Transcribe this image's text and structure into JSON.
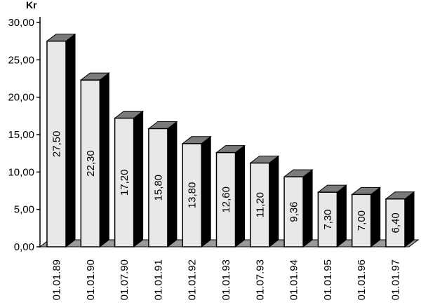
{
  "chart_data": {
    "type": "bar",
    "unit_label": "Kr",
    "categories": [
      "01.01.89",
      "01.01.90",
      "01.07.90",
      "01.01.91",
      "01.01.92",
      "01.01.93",
      "01.07.93",
      "01.01.94",
      "01.01.95",
      "01.01.96",
      "01.01.97"
    ],
    "values": [
      27.5,
      22.3,
      17.2,
      15.8,
      13.8,
      12.6,
      11.2,
      9.36,
      7.3,
      7.0,
      6.4
    ],
    "data_labels": [
      "27,50",
      "22,30",
      "17,20",
      "15,80",
      "13,80",
      "12,60",
      "11,20",
      "9,36",
      "7,30",
      "7,00",
      "6,40"
    ],
    "y_ticks": [
      "0,00",
      "5,00",
      "10,00",
      "15,00",
      "20,00",
      "25,00",
      "30,00"
    ],
    "ylim": [
      0,
      30
    ],
    "grid": false,
    "legend": "none",
    "style": "3d-columns",
    "colors": {
      "bar_front": "#e8e8e8",
      "bar_top": "#7a7a7a",
      "bar_side": "#000000",
      "floor": "#9a9a9a"
    }
  }
}
